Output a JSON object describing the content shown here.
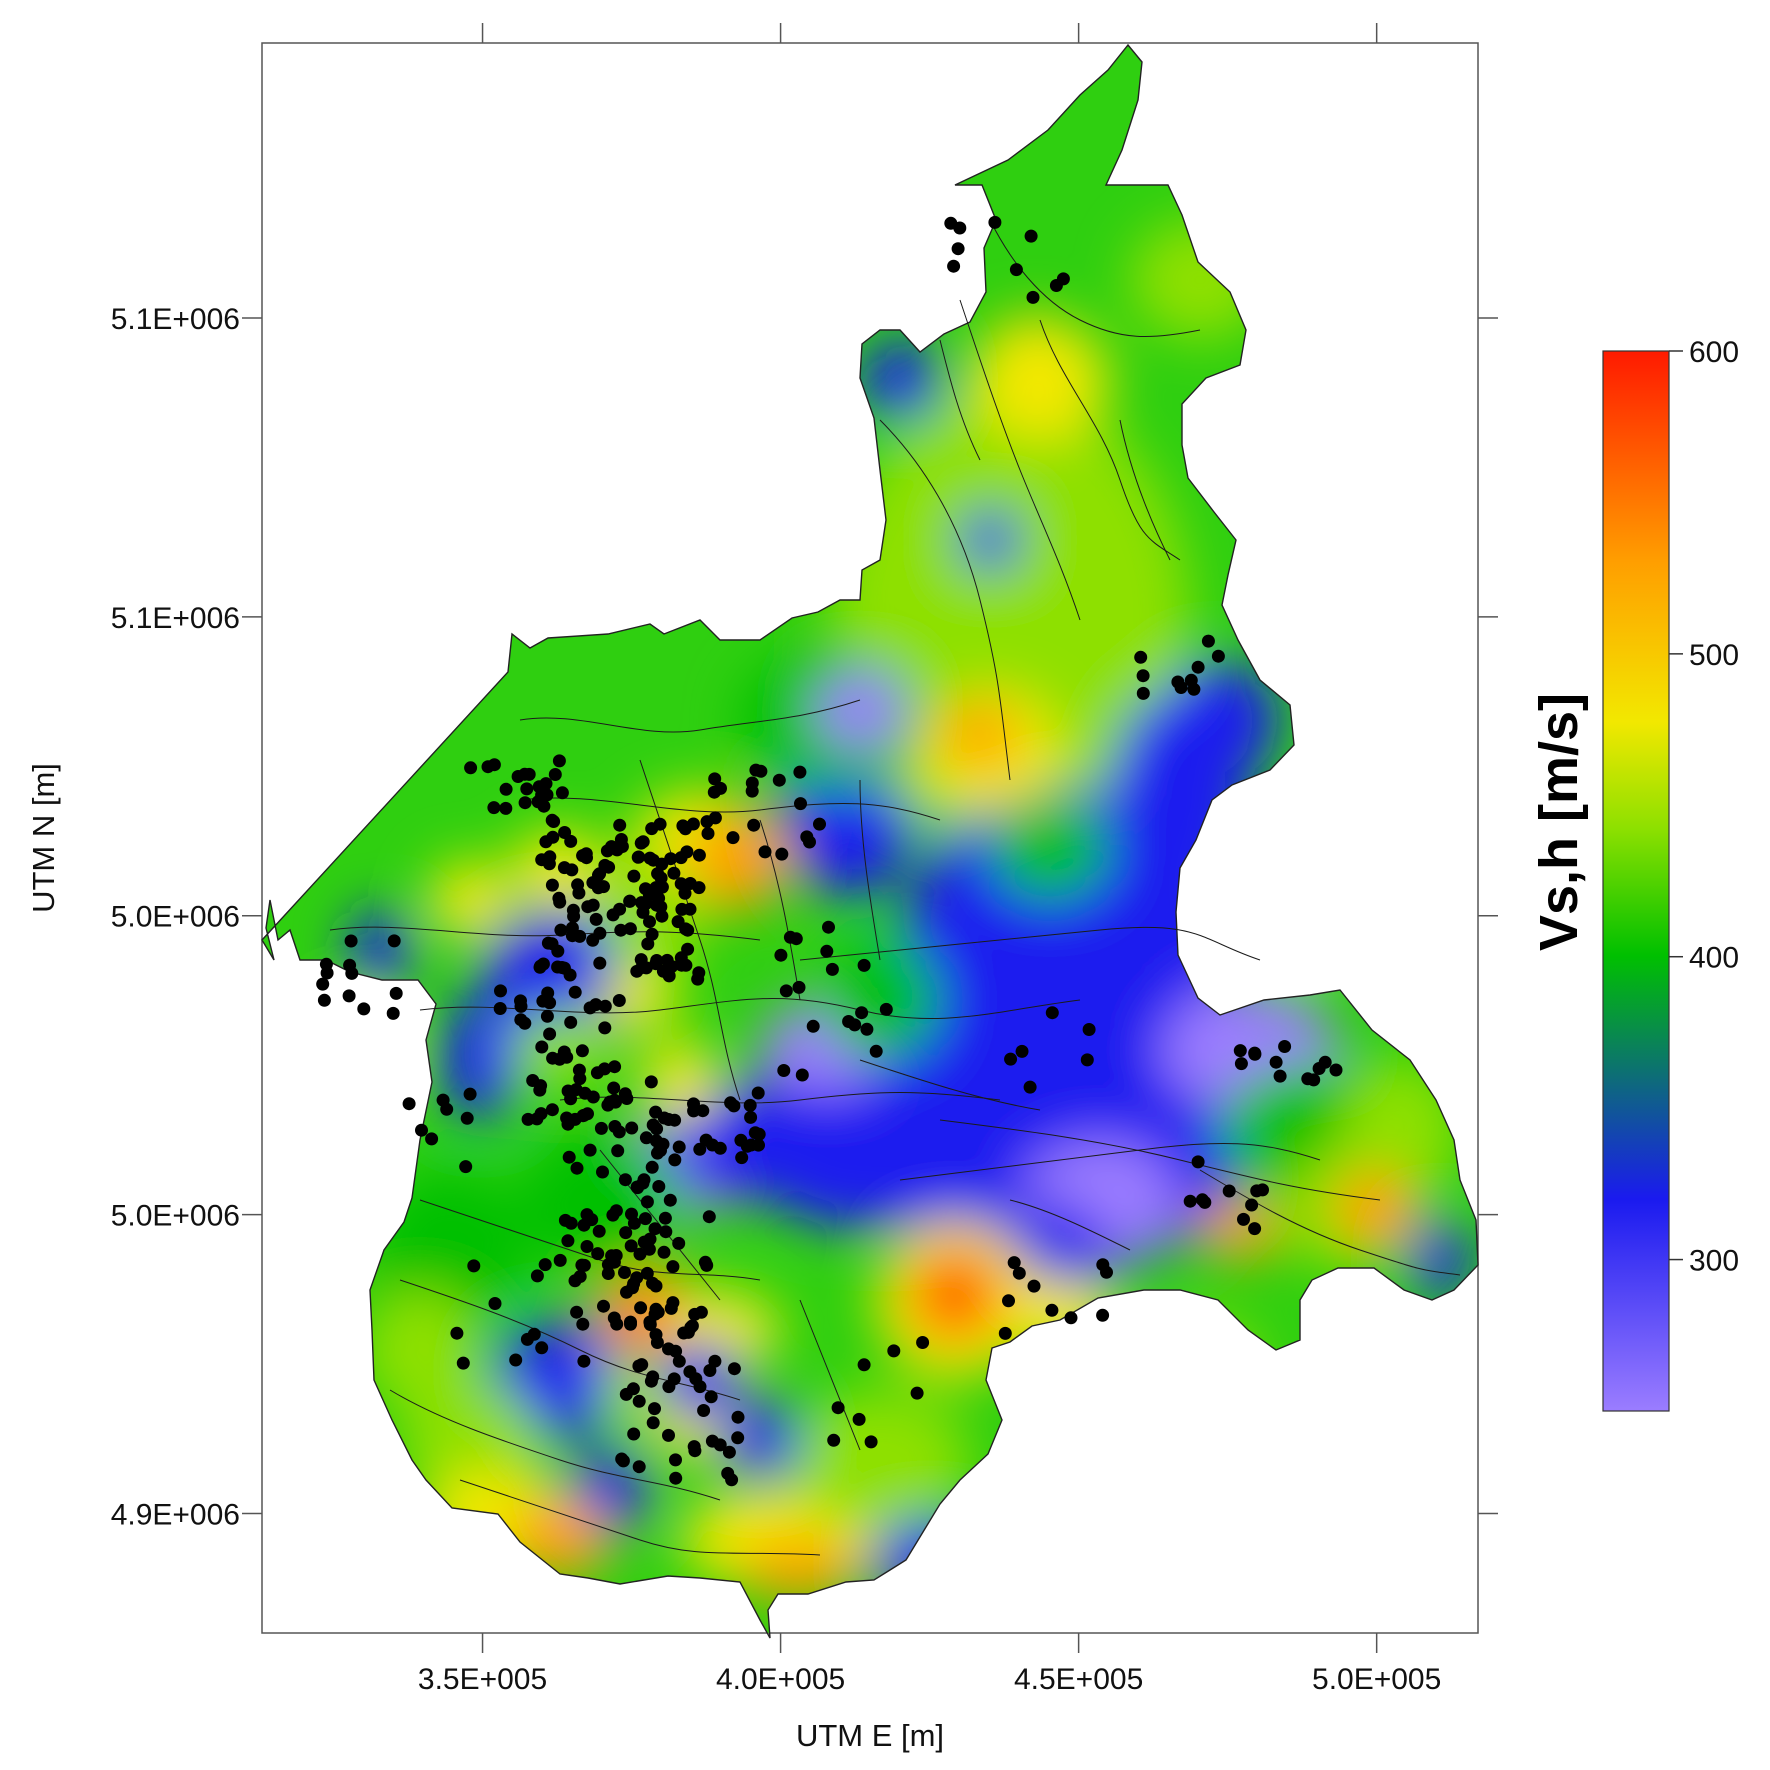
{
  "map": {
    "x_axis": {
      "title": "UTM E [m]",
      "ticks": [
        {
          "value": 350000,
          "label": "3.5E+005"
        },
        {
          "value": 400000,
          "label": "4.0E+005"
        },
        {
          "value": 450000,
          "label": "4.5E+005"
        },
        {
          "value": 500000,
          "label": "5.0E+005"
        }
      ],
      "range": [
        313000,
        517000
      ]
    },
    "y_axis": {
      "title": "UTM N [m]",
      "ticks": [
        {
          "value": 5100000,
          "label": "5.1E+006"
        },
        {
          "value": 5050000,
          "label": "5.1E+006"
        },
        {
          "value": 5000000,
          "label": "5.0E+006"
        },
        {
          "value": 4950000,
          "label": "5.0E+006"
        },
        {
          "value": 4900000,
          "label": "4.9E+006"
        }
      ],
      "range": [
        4880000,
        5146000
      ]
    },
    "colorbar": {
      "title": "Vs,h [m/s]",
      "min": 250,
      "max": 600,
      "ticks": [
        {
          "value": 600,
          "label": "600"
        },
        {
          "value": 500,
          "label": "500"
        },
        {
          "value": 400,
          "label": "400"
        },
        {
          "value": 300,
          "label": "300"
        }
      ],
      "colors": [
        "#9b7dff",
        "#1a1aef",
        "#00c000",
        "#8ee000",
        "#f2e800",
        "#ff9f00",
        "#ff1a00"
      ],
      "stops": [
        0,
        0.2,
        0.43,
        0.55,
        0.65,
        0.8,
        1
      ]
    }
  }
}
